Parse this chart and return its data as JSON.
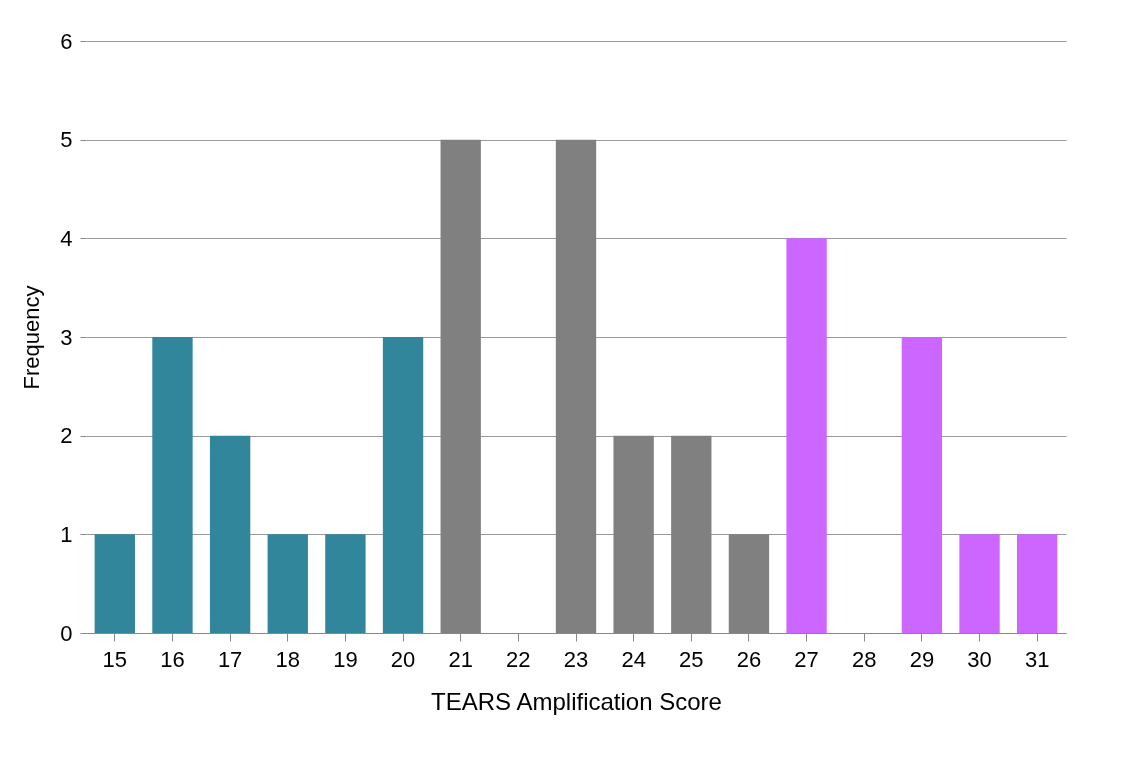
{
  "chart_data": {
    "type": "bar",
    "xlabel": "TEARS Amplification Score",
    "ylabel": "Frequency",
    "categories": [
      "15",
      "16",
      "17",
      "18",
      "19",
      "20",
      "21",
      "22",
      "23",
      "24",
      "25",
      "26",
      "27",
      "28",
      "29",
      "30",
      "31"
    ],
    "values": [
      1,
      3,
      2,
      1,
      1,
      3,
      5,
      0,
      5,
      2,
      2,
      1,
      4,
      0,
      3,
      1,
      1
    ],
    "colors": [
      "#31869b",
      "#31869b",
      "#31869b",
      "#31869b",
      "#31869b",
      "#31869b",
      "#808080",
      "#808080",
      "#808080",
      "#808080",
      "#808080",
      "#808080",
      "#cc66ff",
      "#cc66ff",
      "#cc66ff",
      "#cc66ff",
      "#cc66ff"
    ],
    "ylim": [
      0,
      6
    ],
    "yticks": [
      0,
      1,
      2,
      3,
      4,
      5,
      6
    ],
    "grid": "y"
  }
}
